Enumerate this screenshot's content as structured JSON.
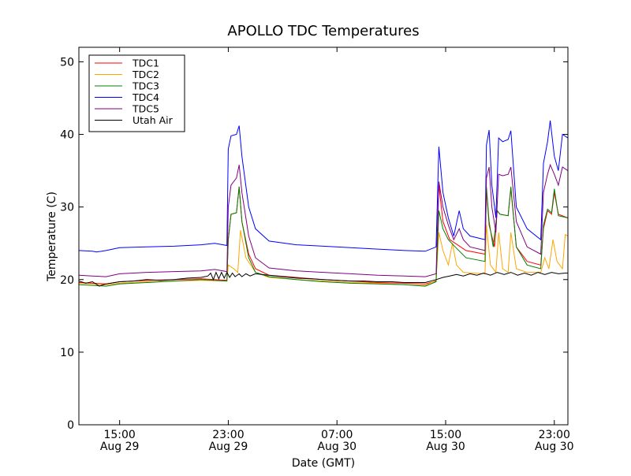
{
  "chart_data": {
    "type": "line",
    "title": "APOLLO TDC Temperatures",
    "xlabel": "Date (GMT)",
    "ylabel": "Temperature (C)",
    "xlim": [
      0,
      36
    ],
    "ylim": [
      0,
      52
    ],
    "x_unit": "hours since Aug 29 12:00 GMT",
    "grid": false,
    "legend_position": "top-left",
    "y_ticks": [
      0,
      10,
      20,
      30,
      40,
      50
    ],
    "y_tick_labels": [
      "0",
      "10",
      "20",
      "30",
      "40",
      "50"
    ],
    "x_ticks": [
      {
        "x": 3,
        "time": "15:00",
        "date": "Aug 29"
      },
      {
        "x": 11,
        "time": "23:00",
        "date": "Aug 29"
      },
      {
        "x": 19,
        "time": "07:00",
        "date": "Aug 30"
      },
      {
        "x": 27,
        "time": "15:00",
        "date": "Aug 30"
      },
      {
        "x": 35,
        "time": "23:00",
        "date": "Aug 30"
      }
    ],
    "series": [
      {
        "name": "TDC1",
        "color": "#ff0000",
        "points": [
          [
            0,
            19.6
          ],
          [
            1,
            19.5
          ],
          [
            2,
            19.4
          ],
          [
            3,
            19.7
          ],
          [
            5,
            19.9
          ],
          [
            7,
            20.0
          ],
          [
            9,
            20.1
          ],
          [
            10.9,
            19.9
          ],
          [
            11.0,
            25.5
          ],
          [
            11.2,
            29.0
          ],
          [
            11.6,
            29.2
          ],
          [
            11.8,
            32.8
          ],
          [
            12.0,
            28.0
          ],
          [
            12.5,
            23.5
          ],
          [
            13,
            21.5
          ],
          [
            14,
            20.6
          ],
          [
            16,
            20.3
          ],
          [
            18,
            20.0
          ],
          [
            20,
            19.8
          ],
          [
            22,
            19.6
          ],
          [
            24,
            19.5
          ],
          [
            25.5,
            19.4
          ],
          [
            26.3,
            19.8
          ],
          [
            26.5,
            33.0
          ],
          [
            26.8,
            28.0
          ],
          [
            27.3,
            25.5
          ],
          [
            27.7,
            25.0
          ],
          [
            28.5,
            24.0
          ],
          [
            29.9,
            23.5
          ],
          [
            30.0,
            32.5
          ],
          [
            30.2,
            27.5
          ],
          [
            30.6,
            24.5
          ],
          [
            30.8,
            29.5
          ],
          [
            31.0,
            29.0
          ],
          [
            31.6,
            28.8
          ],
          [
            31.8,
            32.5
          ],
          [
            32.2,
            24.5
          ],
          [
            33,
            22.5
          ],
          [
            34.0,
            22.0
          ],
          [
            34.2,
            27.0
          ],
          [
            34.5,
            29.5
          ],
          [
            34.8,
            29.0
          ],
          [
            35.0,
            32.0
          ],
          [
            35.3,
            29.0
          ],
          [
            36,
            28.5
          ]
        ]
      },
      {
        "name": "TDC2",
        "color": "#ffa500",
        "points": [
          [
            0,
            19.5
          ],
          [
            1,
            19.4
          ],
          [
            2,
            19.3
          ],
          [
            3,
            19.5
          ],
          [
            5,
            19.7
          ],
          [
            7,
            19.8
          ],
          [
            9,
            19.9
          ],
          [
            10.9,
            19.8
          ],
          [
            11.0,
            22.0
          ],
          [
            11.4,
            21.5
          ],
          [
            11.7,
            21.0
          ],
          [
            11.9,
            26.8
          ],
          [
            12.3,
            23.0
          ],
          [
            13,
            21.0
          ],
          [
            14,
            20.3
          ],
          [
            16,
            20.0
          ],
          [
            18,
            19.8
          ],
          [
            20,
            19.6
          ],
          [
            22,
            19.5
          ],
          [
            24,
            19.3
          ],
          [
            25.5,
            19.2
          ],
          [
            26.3,
            19.9
          ],
          [
            26.5,
            26.5
          ],
          [
            26.8,
            24.0
          ],
          [
            27.2,
            22.0
          ],
          [
            27.5,
            25.0
          ],
          [
            27.8,
            22.0
          ],
          [
            28.3,
            21.0
          ],
          [
            29.9,
            20.8
          ],
          [
            30.0,
            27.5
          ],
          [
            30.3,
            22.0
          ],
          [
            30.7,
            21.0
          ],
          [
            30.9,
            26.5
          ],
          [
            31.2,
            21.5
          ],
          [
            31.6,
            21.0
          ],
          [
            31.8,
            26.5
          ],
          [
            32.2,
            21.5
          ],
          [
            33,
            21.0
          ],
          [
            34.0,
            21.0
          ],
          [
            34.3,
            23.0
          ],
          [
            34.6,
            21.5
          ],
          [
            34.9,
            25.5
          ],
          [
            35.2,
            22.5
          ],
          [
            35.6,
            21.5
          ],
          [
            35.8,
            26.2
          ],
          [
            36,
            26.0
          ]
        ]
      },
      {
        "name": "TDC3",
        "color": "#008000",
        "points": [
          [
            0,
            19.3
          ],
          [
            1,
            19.2
          ],
          [
            2,
            19.1
          ],
          [
            3,
            19.4
          ],
          [
            5,
            19.6
          ],
          [
            7,
            19.8
          ],
          [
            9,
            20.0
          ],
          [
            10.9,
            19.8
          ],
          [
            11.0,
            25.5
          ],
          [
            11.2,
            29.0
          ],
          [
            11.6,
            29.2
          ],
          [
            11.8,
            32.8
          ],
          [
            12.0,
            28.0
          ],
          [
            12.5,
            23.0
          ],
          [
            13,
            21.0
          ],
          [
            14,
            20.4
          ],
          [
            16,
            20.0
          ],
          [
            18,
            19.7
          ],
          [
            20,
            19.5
          ],
          [
            22,
            19.4
          ],
          [
            24,
            19.3
          ],
          [
            25.5,
            19.1
          ],
          [
            26.3,
            19.7
          ],
          [
            26.5,
            29.5
          ],
          [
            26.8,
            27.0
          ],
          [
            27.2,
            25.5
          ],
          [
            27.7,
            24.5
          ],
          [
            28.5,
            23.0
          ],
          [
            29.9,
            22.5
          ],
          [
            30.0,
            32.8
          ],
          [
            30.2,
            28.0
          ],
          [
            30.5,
            24.5
          ],
          [
            30.8,
            29.5
          ],
          [
            31.0,
            29.0
          ],
          [
            31.6,
            28.8
          ],
          [
            31.8,
            32.8
          ],
          [
            32.2,
            24.5
          ],
          [
            33,
            22.0
          ],
          [
            34.0,
            21.5
          ],
          [
            34.2,
            27.5
          ],
          [
            34.5,
            29.7
          ],
          [
            34.8,
            29.2
          ],
          [
            35.0,
            32.5
          ],
          [
            35.3,
            28.8
          ],
          [
            36,
            28.5
          ]
        ]
      },
      {
        "name": "TDC4",
        "color": "#0000ff",
        "points": [
          [
            0,
            24.0
          ],
          [
            1,
            23.9
          ],
          [
            1.3,
            23.8
          ],
          [
            2,
            24.0
          ],
          [
            3,
            24.4
          ],
          [
            5,
            24.5
          ],
          [
            7,
            24.6
          ],
          [
            9,
            24.8
          ],
          [
            10,
            25.0
          ],
          [
            10.9,
            24.7
          ],
          [
            11.0,
            38.0
          ],
          [
            11.2,
            39.8
          ],
          [
            11.6,
            40.0
          ],
          [
            11.8,
            41.2
          ],
          [
            12.0,
            37.0
          ],
          [
            12.5,
            30.0
          ],
          [
            13,
            27.0
          ],
          [
            14,
            25.3
          ],
          [
            16,
            24.8
          ],
          [
            18,
            24.6
          ],
          [
            20,
            24.4
          ],
          [
            22,
            24.2
          ],
          [
            24,
            24.0
          ],
          [
            25.5,
            23.9
          ],
          [
            26.3,
            24.5
          ],
          [
            26.5,
            38.3
          ],
          [
            26.8,
            32.0
          ],
          [
            27.2,
            28.5
          ],
          [
            27.6,
            26.0
          ],
          [
            28.0,
            29.5
          ],
          [
            28.3,
            27.0
          ],
          [
            28.8,
            26.0
          ],
          [
            29.9,
            25.5
          ],
          [
            30.0,
            38.5
          ],
          [
            30.2,
            40.6
          ],
          [
            30.4,
            33.0
          ],
          [
            30.7,
            28.5
          ],
          [
            30.9,
            39.5
          ],
          [
            31.2,
            39.0
          ],
          [
            31.6,
            39.3
          ],
          [
            31.8,
            40.5
          ],
          [
            32.2,
            30.0
          ],
          [
            33,
            27.0
          ],
          [
            34.0,
            25.5
          ],
          [
            34.2,
            36.0
          ],
          [
            34.5,
            39.0
          ],
          [
            34.7,
            41.9
          ],
          [
            35.0,
            37.0
          ],
          [
            35.3,
            35.0
          ],
          [
            35.6,
            40.0
          ],
          [
            36,
            39.5
          ]
        ]
      },
      {
        "name": "TDC5",
        "color": "#800080",
        "points": [
          [
            0,
            20.6
          ],
          [
            1,
            20.5
          ],
          [
            2,
            20.4
          ],
          [
            3,
            20.8
          ],
          [
            5,
            21.0
          ],
          [
            7,
            21.1
          ],
          [
            9,
            21.2
          ],
          [
            10,
            21.4
          ],
          [
            10.9,
            21.1
          ],
          [
            11.0,
            30.0
          ],
          [
            11.2,
            33.0
          ],
          [
            11.6,
            34.0
          ],
          [
            11.8,
            35.8
          ],
          [
            12.0,
            32.0
          ],
          [
            12.5,
            26.0
          ],
          [
            13,
            23.0
          ],
          [
            14,
            21.6
          ],
          [
            16,
            21.2
          ],
          [
            18,
            21.0
          ],
          [
            20,
            20.8
          ],
          [
            22,
            20.6
          ],
          [
            24,
            20.5
          ],
          [
            25.5,
            20.4
          ],
          [
            26.3,
            20.8
          ],
          [
            26.5,
            33.5
          ],
          [
            26.8,
            30.0
          ],
          [
            27.2,
            27.5
          ],
          [
            27.6,
            25.5
          ],
          [
            28.0,
            27.0
          ],
          [
            28.3,
            25.5
          ],
          [
            28.8,
            24.5
          ],
          [
            29.9,
            24.0
          ],
          [
            30.0,
            34.0
          ],
          [
            30.2,
            35.5
          ],
          [
            30.4,
            30.0
          ],
          [
            30.7,
            26.5
          ],
          [
            30.9,
            34.5
          ],
          [
            31.2,
            34.3
          ],
          [
            31.6,
            34.5
          ],
          [
            31.8,
            35.5
          ],
          [
            32.2,
            28.0
          ],
          [
            33,
            24.5
          ],
          [
            34.0,
            23.5
          ],
          [
            34.2,
            32.0
          ],
          [
            34.5,
            34.5
          ],
          [
            34.7,
            35.8
          ],
          [
            35.0,
            34.5
          ],
          [
            35.3,
            33.0
          ],
          [
            35.6,
            35.5
          ],
          [
            36,
            35.0
          ]
        ]
      },
      {
        "name": "Utah Air",
        "color": "#000000",
        "points": [
          [
            0,
            19.8
          ],
          [
            0.5,
            19.5
          ],
          [
            1,
            19.7
          ],
          [
            1.5,
            19.1
          ],
          [
            2,
            19.4
          ],
          [
            3,
            19.7
          ],
          [
            4,
            19.8
          ],
          [
            5,
            20.0
          ],
          [
            6,
            19.9
          ],
          [
            7,
            20.0
          ],
          [
            8,
            20.2
          ],
          [
            9,
            20.3
          ],
          [
            9.5,
            20.5
          ],
          [
            9.7,
            20.9
          ],
          [
            9.9,
            20.0
          ],
          [
            10.1,
            21.0
          ],
          [
            10.3,
            20.1
          ],
          [
            10.5,
            21.0
          ],
          [
            10.7,
            20.2
          ],
          [
            10.9,
            21.0
          ],
          [
            11.1,
            20.3
          ],
          [
            11.3,
            20.9
          ],
          [
            11.5,
            20.4
          ],
          [
            11.8,
            20.8
          ],
          [
            12.0,
            20.4
          ],
          [
            12.3,
            20.8
          ],
          [
            12.6,
            20.5
          ],
          [
            13,
            20.8
          ],
          [
            14,
            20.6
          ],
          [
            15,
            20.4
          ],
          [
            16,
            20.2
          ],
          [
            17,
            20.1
          ],
          [
            18,
            20.0
          ],
          [
            19,
            19.9
          ],
          [
            20,
            19.8
          ],
          [
            21,
            19.8
          ],
          [
            22,
            19.7
          ],
          [
            23,
            19.7
          ],
          [
            24,
            19.6
          ],
          [
            25,
            19.6
          ],
          [
            25.5,
            19.6
          ],
          [
            26.3,
            20.0
          ],
          [
            26.8,
            20.3
          ],
          [
            27.3,
            20.5
          ],
          [
            27.8,
            20.7
          ],
          [
            28.3,
            20.5
          ],
          [
            28.8,
            20.8
          ],
          [
            29.3,
            20.6
          ],
          [
            29.8,
            20.9
          ],
          [
            30.3,
            20.6
          ],
          [
            30.8,
            21.0
          ],
          [
            31.3,
            20.7
          ],
          [
            31.8,
            21.0
          ],
          [
            32.3,
            20.6
          ],
          [
            32.8,
            20.9
          ],
          [
            33.3,
            20.6
          ],
          [
            33.8,
            21.0
          ],
          [
            34.3,
            20.7
          ],
          [
            34.8,
            21.0
          ],
          [
            35.3,
            20.8
          ],
          [
            35.8,
            20.9
          ],
          [
            36,
            20.9
          ]
        ]
      }
    ]
  }
}
